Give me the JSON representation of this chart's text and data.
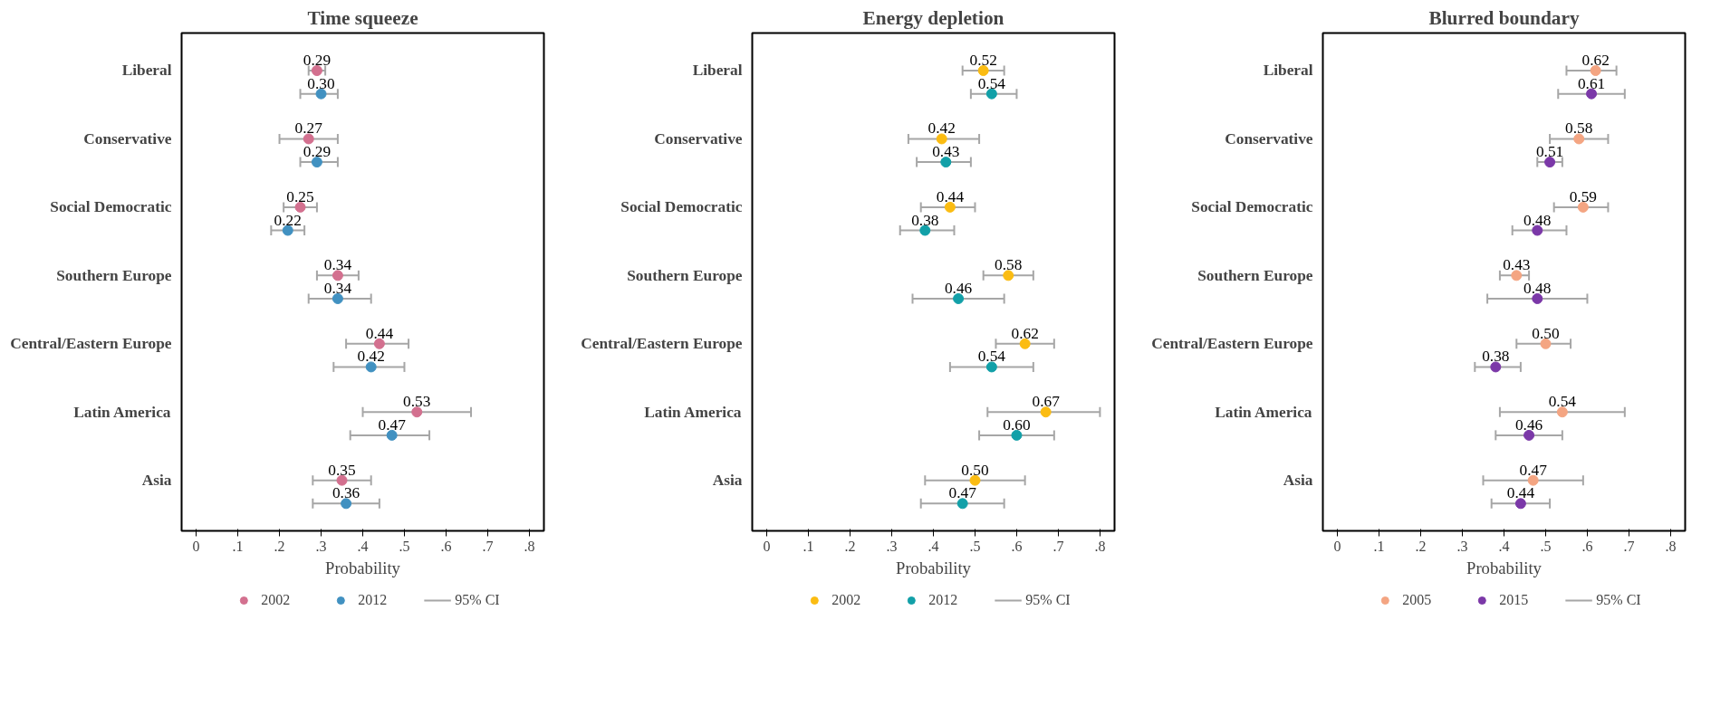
{
  "chart_data": [
    {
      "type": "scatter",
      "title": "Time squeeze",
      "xlabel": "Probability",
      "orientation": "horizontal",
      "categories": [
        "Liberal",
        "Conservative",
        "Social Democratic",
        "Southern Europe",
        "Central/Eastern Europe",
        "Latin America",
        "Asia"
      ],
      "xlim": [
        -0.035,
        0.835
      ],
      "xticks": [
        {
          "value": 0,
          "label": "0"
        },
        {
          "value": 0.1,
          "label": ".1"
        },
        {
          "value": 0.2,
          "label": ".2"
        },
        {
          "value": 0.3,
          "label": ".3"
        },
        {
          "value": 0.4,
          "label": ".4"
        },
        {
          "value": 0.5,
          "label": ".5"
        },
        {
          "value": 0.6,
          "label": ".6"
        },
        {
          "value": 0.7,
          "label": ".7"
        },
        {
          "value": 0.8,
          "label": ".8"
        }
      ],
      "grid": false,
      "legend": "bottom",
      "marker": "circle",
      "annotations": [
        "95% CI"
      ],
      "series": [
        {
          "name": "2002",
          "color": "#d3708f",
          "values": [
            0.29,
            0.27,
            0.25,
            0.34,
            0.44,
            0.53,
            0.35
          ],
          "value_labels": [
            "0.29",
            "0.27",
            "0.25",
            "0.34",
            "0.44",
            "0.53",
            "0.35"
          ],
          "errors": [
            [
              0.27,
              0.31
            ],
            [
              0.2,
              0.34
            ],
            [
              0.21,
              0.29
            ],
            [
              0.29,
              0.39
            ],
            [
              0.36,
              0.51
            ],
            [
              0.4,
              0.66
            ],
            [
              0.28,
              0.42
            ]
          ]
        },
        {
          "name": "2012",
          "color": "#4191c1",
          "values": [
            0.3,
            0.29,
            0.22,
            0.34,
            0.42,
            0.47,
            0.36
          ],
          "value_labels": [
            "0.30",
            "0.29",
            "0.22",
            "0.34",
            "0.42",
            "0.47",
            "0.36"
          ],
          "errors": [
            [
              0.25,
              0.34
            ],
            [
              0.25,
              0.34
            ],
            [
              0.18,
              0.26
            ],
            [
              0.27,
              0.42
            ],
            [
              0.33,
              0.5
            ],
            [
              0.37,
              0.56
            ],
            [
              0.28,
              0.44
            ]
          ]
        }
      ]
    },
    {
      "type": "scatter",
      "title": "Energy depletion",
      "xlabel": "Probability",
      "orientation": "horizontal",
      "categories": [
        "Liberal",
        "Conservative",
        "Social Democratic",
        "Southern Europe",
        "Central/Eastern Europe",
        "Latin America",
        "Asia"
      ],
      "xlim": [
        -0.035,
        0.835
      ],
      "xticks": [
        {
          "value": 0,
          "label": "0"
        },
        {
          "value": 0.1,
          "label": ".1"
        },
        {
          "value": 0.2,
          "label": ".2"
        },
        {
          "value": 0.3,
          "label": ".3"
        },
        {
          "value": 0.4,
          "label": ".4"
        },
        {
          "value": 0.5,
          "label": ".5"
        },
        {
          "value": 0.6,
          "label": ".6"
        },
        {
          "value": 0.7,
          "label": ".7"
        },
        {
          "value": 0.8,
          "label": ".8"
        }
      ],
      "grid": false,
      "legend": "bottom",
      "marker": "circle",
      "annotations": [
        "95% CI"
      ],
      "series": [
        {
          "name": "2002",
          "color": "#fbbc12",
          "values": [
            0.52,
            0.42,
            0.44,
            0.58,
            0.62,
            0.67,
            0.5
          ],
          "value_labels": [
            "0.52",
            "0.42",
            "0.44",
            "0.58",
            "0.62",
            "0.67",
            "0.50"
          ],
          "errors": [
            [
              0.47,
              0.57
            ],
            [
              0.34,
              0.51
            ],
            [
              0.37,
              0.5
            ],
            [
              0.52,
              0.64
            ],
            [
              0.55,
              0.69
            ],
            [
              0.53,
              0.8
            ],
            [
              0.38,
              0.62
            ]
          ]
        },
        {
          "name": "2012",
          "color": "#12a0a8",
          "values": [
            0.54,
            0.43,
            0.38,
            0.46,
            0.54,
            0.6,
            0.47
          ],
          "value_labels": [
            "0.54",
            "0.43",
            "0.38",
            "0.46",
            "0.54",
            "0.60",
            "0.47"
          ],
          "errors": [
            [
              0.49,
              0.6
            ],
            [
              0.36,
              0.49
            ],
            [
              0.32,
              0.45
            ],
            [
              0.35,
              0.57
            ],
            [
              0.44,
              0.64
            ],
            [
              0.51,
              0.69
            ],
            [
              0.37,
              0.57
            ]
          ]
        }
      ]
    },
    {
      "type": "scatter",
      "title": "Blurred boundary",
      "xlabel": "Probability",
      "orientation": "horizontal",
      "categories": [
        "Liberal",
        "Conservative",
        "Social Democratic",
        "Southern Europe",
        "Central/Eastern Europe",
        "Latin America",
        "Asia"
      ],
      "xlim": [
        -0.035,
        0.835
      ],
      "xticks": [
        {
          "value": 0,
          "label": "0"
        },
        {
          "value": 0.1,
          "label": ".1"
        },
        {
          "value": 0.2,
          "label": ".2"
        },
        {
          "value": 0.3,
          "label": ".3"
        },
        {
          "value": 0.4,
          "label": ".4"
        },
        {
          "value": 0.5,
          "label": ".5"
        },
        {
          "value": 0.6,
          "label": ".6"
        },
        {
          "value": 0.7,
          "label": ".7"
        },
        {
          "value": 0.8,
          "label": ".8"
        }
      ],
      "grid": false,
      "legend": "bottom",
      "marker": "circle",
      "annotations": [
        "95% CI"
      ],
      "series": [
        {
          "name": "2005",
          "color": "#f4a582",
          "values": [
            0.62,
            0.58,
            0.59,
            0.43,
            0.5,
            0.54,
            0.47
          ],
          "value_labels": [
            "0.62",
            "0.58",
            "0.59",
            "0.43",
            "0.50",
            "0.54",
            "0.47"
          ],
          "errors": [
            [
              0.55,
              0.67
            ],
            [
              0.51,
              0.65
            ],
            [
              0.52,
              0.65
            ],
            [
              0.39,
              0.46
            ],
            [
              0.43,
              0.56
            ],
            [
              0.39,
              0.69
            ],
            [
              0.35,
              0.59
            ]
          ]
        },
        {
          "name": "2015",
          "color": "#7b38a8",
          "values": [
            0.61,
            0.51,
            0.48,
            0.48,
            0.38,
            0.46,
            0.44
          ],
          "value_labels": [
            "0.61",
            "0.51",
            "0.48",
            "0.48",
            "0.38",
            "0.46",
            "0.44"
          ],
          "errors": [
            [
              0.53,
              0.69
            ],
            [
              0.48,
              0.54
            ],
            [
              0.42,
              0.55
            ],
            [
              0.36,
              0.6
            ],
            [
              0.33,
              0.44
            ],
            [
              0.38,
              0.54
            ],
            [
              0.37,
              0.51
            ]
          ]
        }
      ]
    }
  ]
}
